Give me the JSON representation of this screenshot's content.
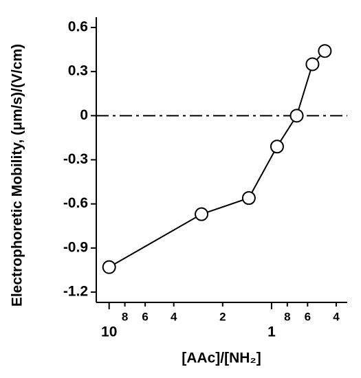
{
  "chart_data": {
    "type": "line",
    "xlabel": "[AAc]/[NH₂]",
    "ylabel": "Electrophoretic Mobility, (μm/s)/(V/cm)",
    "x": [
      10,
      2.7,
      1.38,
      0.925,
      0.7,
      0.56,
      0.47
    ],
    "series": [
      {
        "color": "#000000",
        "values": [
          -1.03,
          -0.67,
          -0.56,
          -0.21,
          0,
          0.35,
          0.44
        ]
      }
    ],
    "xscale": "log",
    "xlim": [
      12,
      0.342
    ],
    "xticks": [
      10,
      8,
      6,
      4,
      2,
      1,
      {
        "value": 0.8,
        "label": "8"
      },
      {
        "value": 0.6,
        "label": "6"
      },
      {
        "value": 0.4,
        "label": "4"
      }
    ],
    "ylim": [
      -1.27,
      0.67
    ],
    "yticks": [
      0.6,
      0.3,
      0,
      -0.3,
      -0.6,
      -0.9,
      -1.2
    ],
    "zero_line": true
  }
}
